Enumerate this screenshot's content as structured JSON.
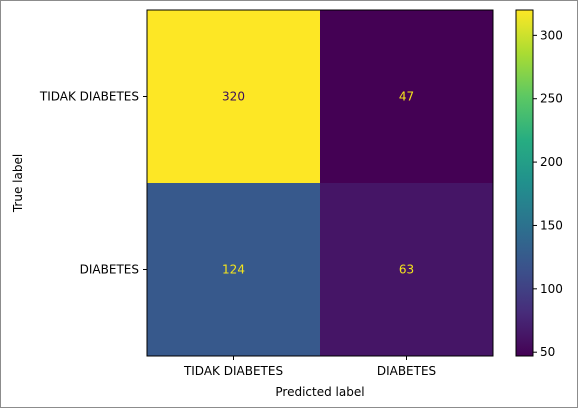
{
  "chart_data": {
    "type": "heatmap",
    "title": "",
    "xlabel": "Predicted label",
    "ylabel": "True label",
    "x_categories": [
      "TIDAK DIABETES",
      "DIABETES"
    ],
    "y_categories": [
      "TIDAK DIABETES",
      "DIABETES"
    ],
    "values": [
      [
        320,
        47
      ],
      [
        124,
        63
      ]
    ],
    "colormap": "viridis",
    "colorbar": {
      "min": 47,
      "max": 320,
      "ticks": [
        50,
        100,
        150,
        200,
        250,
        300
      ]
    },
    "grid": false
  },
  "colors": {
    "text_on_dark": "#f5e51b",
    "text_on_light": "#3b0f5a",
    "axis": "#000000"
  }
}
